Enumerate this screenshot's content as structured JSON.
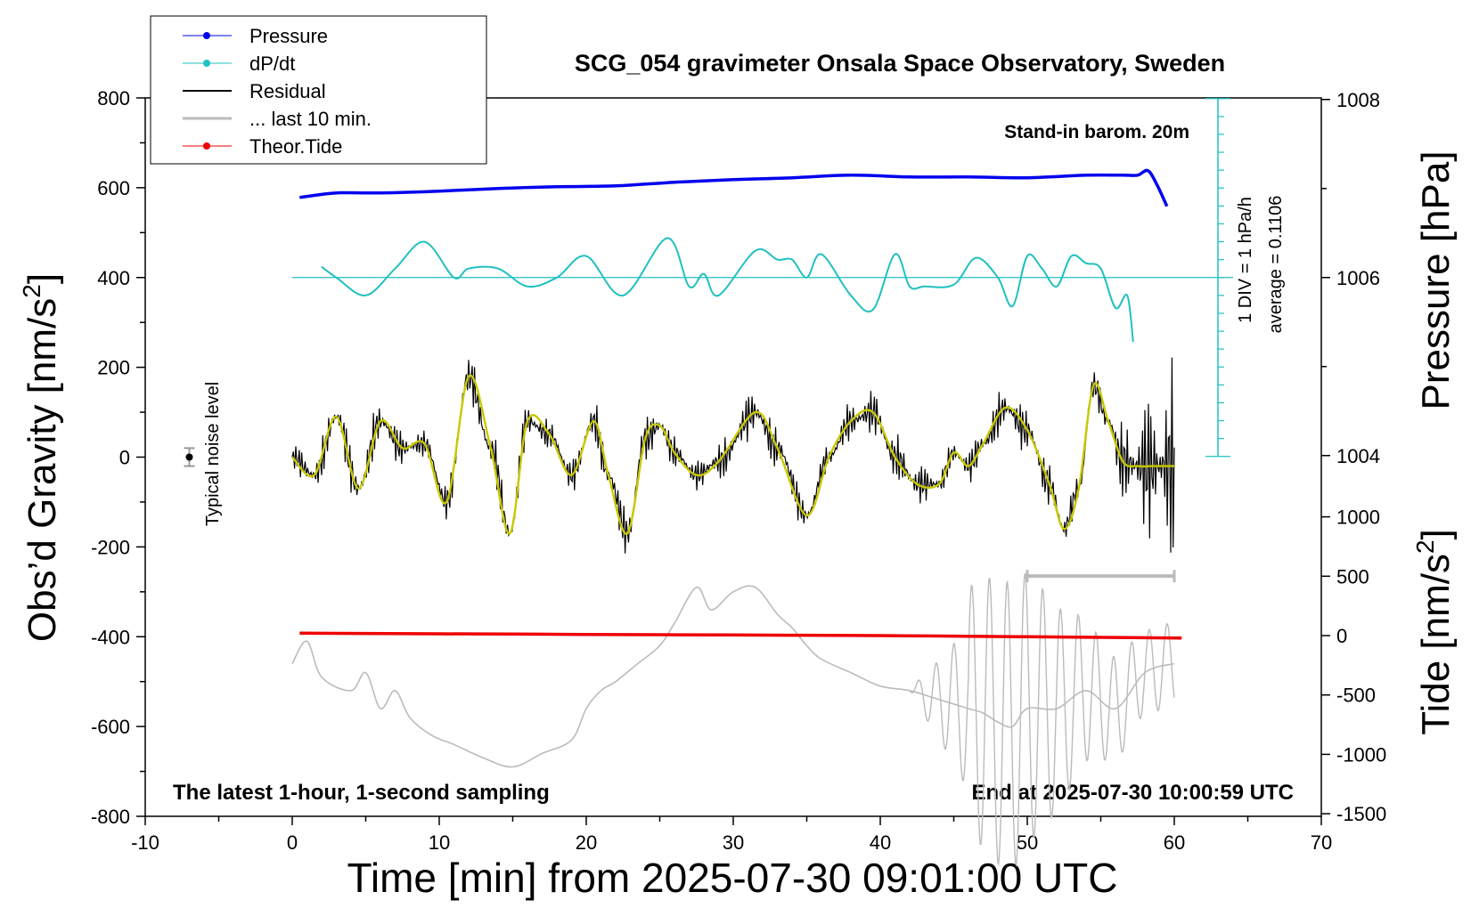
{
  "chart_data": {
    "type": "line",
    "title": "SCG_054 gravimeter Onsala Space Observatory, Sweden",
    "xlabel": "Time [min] from 2025-07-30 09:01:00 UTC",
    "ylabel_left": "Obs’d Gravity [nm/s",
    "ylabel_left_sup": "2",
    "ylabel_left_close": "]",
    "ylabel_right_pressure": "Pressure [hPa]",
    "ylabel_right_tide": "Tide [nm/s",
    "ylabel_right_tide_sup": "2",
    "ylabel_right_tide_close": "]",
    "xlim": [
      -10,
      70
    ],
    "ylim_gravity": [
      -800,
      800
    ],
    "pressure_range": [
      1004,
      1008
    ],
    "tide_range": [
      -1500,
      1000
    ],
    "x_ticks": [
      "-10",
      "0",
      "10",
      "20",
      "30",
      "40",
      "50",
      "60",
      "70"
    ],
    "y_ticks_gravity": [
      "800",
      "600",
      "400",
      "200",
      "0",
      "-200",
      "-400",
      "-600",
      "-800"
    ],
    "y_ticks_pressure": [
      "1008",
      "1006",
      "1004"
    ],
    "y_ticks_tide": [
      "1000",
      "500",
      "0",
      "-500",
      "-1000",
      "-1500"
    ],
    "legend": [
      "Pressure",
      "dP/dt",
      "Residual",
      "... last 10 min.",
      "Theor.Tide"
    ],
    "annotations": {
      "barometer": "Stand-in barom. 20m",
      "dpdt_scale": "1 DIV = 1 hPa/h",
      "dpdt_average": "average = 0.1106",
      "noise": "Typical noise level",
      "bottom_left": "The latest 1-hour, 1-second sampling",
      "bottom_right": "End at 2025-07-30 10:00:59 UTC"
    },
    "colors": {
      "pressure": "#0000ee",
      "dpdt": "#20c0c0",
      "residual": "#000000",
      "smooth": "#c8c800",
      "last10": "#bbbbbb",
      "tide": "#ee0000"
    },
    "series": [
      {
        "name": "Pressure",
        "unit": "hPa",
        "x": [
          0.5,
          3,
          6,
          10,
          14,
          18,
          22,
          26,
          30,
          34,
          38,
          42,
          46,
          50,
          54,
          56.5,
          57.5,
          58.2,
          58.8,
          59.5
        ],
        "values": [
          1006.9,
          1006.95,
          1006.95,
          1006.97,
          1007.0,
          1007.02,
          1007.03,
          1007.07,
          1007.1,
          1007.12,
          1007.15,
          1007.13,
          1007.13,
          1007.12,
          1007.15,
          1007.15,
          1007.15,
          1007.2,
          1007.05,
          1006.8
        ]
      },
      {
        "name": "dP/dt",
        "unit": "hPa/h, 1 DIV = 1 hPa/h about reference line",
        "x": [
          2,
          3,
          5,
          7,
          9,
          11,
          12,
          14,
          16,
          18,
          20,
          22.5,
          25.5,
          27,
          28,
          29,
          31.5,
          33,
          34,
          35,
          36,
          38,
          39.5,
          41,
          42,
          43,
          45,
          46.5,
          48,
          49,
          50,
          51,
          52,
          53,
          54,
          55,
          56,
          56.8,
          57.2
        ],
        "values": [
          0.6,
          0.0,
          -1.0,
          0.5,
          2.0,
          0.0,
          0.5,
          0.5,
          -0.5,
          0.0,
          1.2,
          -1.0,
          2.2,
          -0.5,
          0.2,
          -1.0,
          1.5,
          1.0,
          1.0,
          0.0,
          1.3,
          -1.0,
          -1.8,
          1.3,
          -0.5,
          -0.5,
          -0.4,
          1.1,
          0.0,
          -1.6,
          1.2,
          0.5,
          -0.5,
          1.2,
          0.8,
          0.5,
          -1.7,
          -1.0,
          -3.6
        ]
      },
      {
        "name": "Residual (smoothed)",
        "unit": "nm/s2",
        "x": [
          0,
          1.5,
          3,
          4.5,
          6,
          7.5,
          9,
          10.5,
          12,
          13.5,
          14.8,
          16,
          17.5,
          19,
          20.5,
          21.5,
          22.8,
          24,
          25,
          26,
          27.5,
          29,
          31.5,
          33,
          35,
          36.5,
          38,
          39.5,
          41,
          42.5,
          44,
          45,
          46,
          47,
          48.5,
          50,
          51.5,
          52.5,
          53.5,
          54.5,
          55.5,
          56.5,
          57.5,
          58.5,
          59.5,
          60
        ],
        "values": [
          0,
          -40,
          90,
          -70,
          80,
          20,
          30,
          -100,
          180,
          20,
          -170,
          80,
          50,
          -40,
          80,
          -40,
          -170,
          40,
          70,
          10,
          -40,
          -10,
          100,
          20,
          -130,
          0,
          80,
          100,
          0,
          -60,
          -60,
          10,
          -20,
          30,
          110,
          60,
          -60,
          -160,
          -70,
          160,
          80,
          -10,
          -20,
          -20,
          -20,
          -20
        ]
      },
      {
        "name": "... last 10 min.",
        "unit": "nm/s2 (expanded, x-range 50-60)",
        "x": [
          0,
          1,
          2,
          4,
          5,
          6,
          7,
          8,
          9.5,
          11,
          13,
          15,
          17,
          19,
          20,
          21,
          22,
          23.5,
          25,
          26,
          27.5,
          28.5,
          30,
          31.5,
          33,
          34,
          35,
          36,
          38,
          40,
          42,
          44,
          46,
          47,
          48,
          49,
          50,
          52,
          54,
          56,
          58,
          60
        ],
        "values": [
          -460,
          -410,
          -490,
          -520,
          -480,
          -560,
          -520,
          -580,
          -620,
          -640,
          -670,
          -690,
          -660,
          -630,
          -560,
          -520,
          -500,
          -460,
          -420,
          -370,
          -290,
          -340,
          -300,
          -290,
          -350,
          -380,
          -420,
          -450,
          -480,
          -510,
          -520,
          -540,
          -560,
          -570,
          -590,
          -600,
          -560,
          -560,
          -520,
          -560,
          -480,
          -460
        ]
      },
      {
        "name": "Theor.Tide",
        "unit": "nm/s2 (tide axis)",
        "x": [
          0.5,
          10,
          20,
          30,
          40,
          50,
          60.5
        ],
        "values": [
          20,
          15,
          10,
          5,
          0,
          -10,
          -20
        ]
      }
    ],
    "last10_hbar": {
      "x": [
        50,
        60
      ],
      "gravity": -265
    },
    "noise_bar": {
      "x": -7,
      "gravity": 0,
      "half_range": 20
    }
  }
}
